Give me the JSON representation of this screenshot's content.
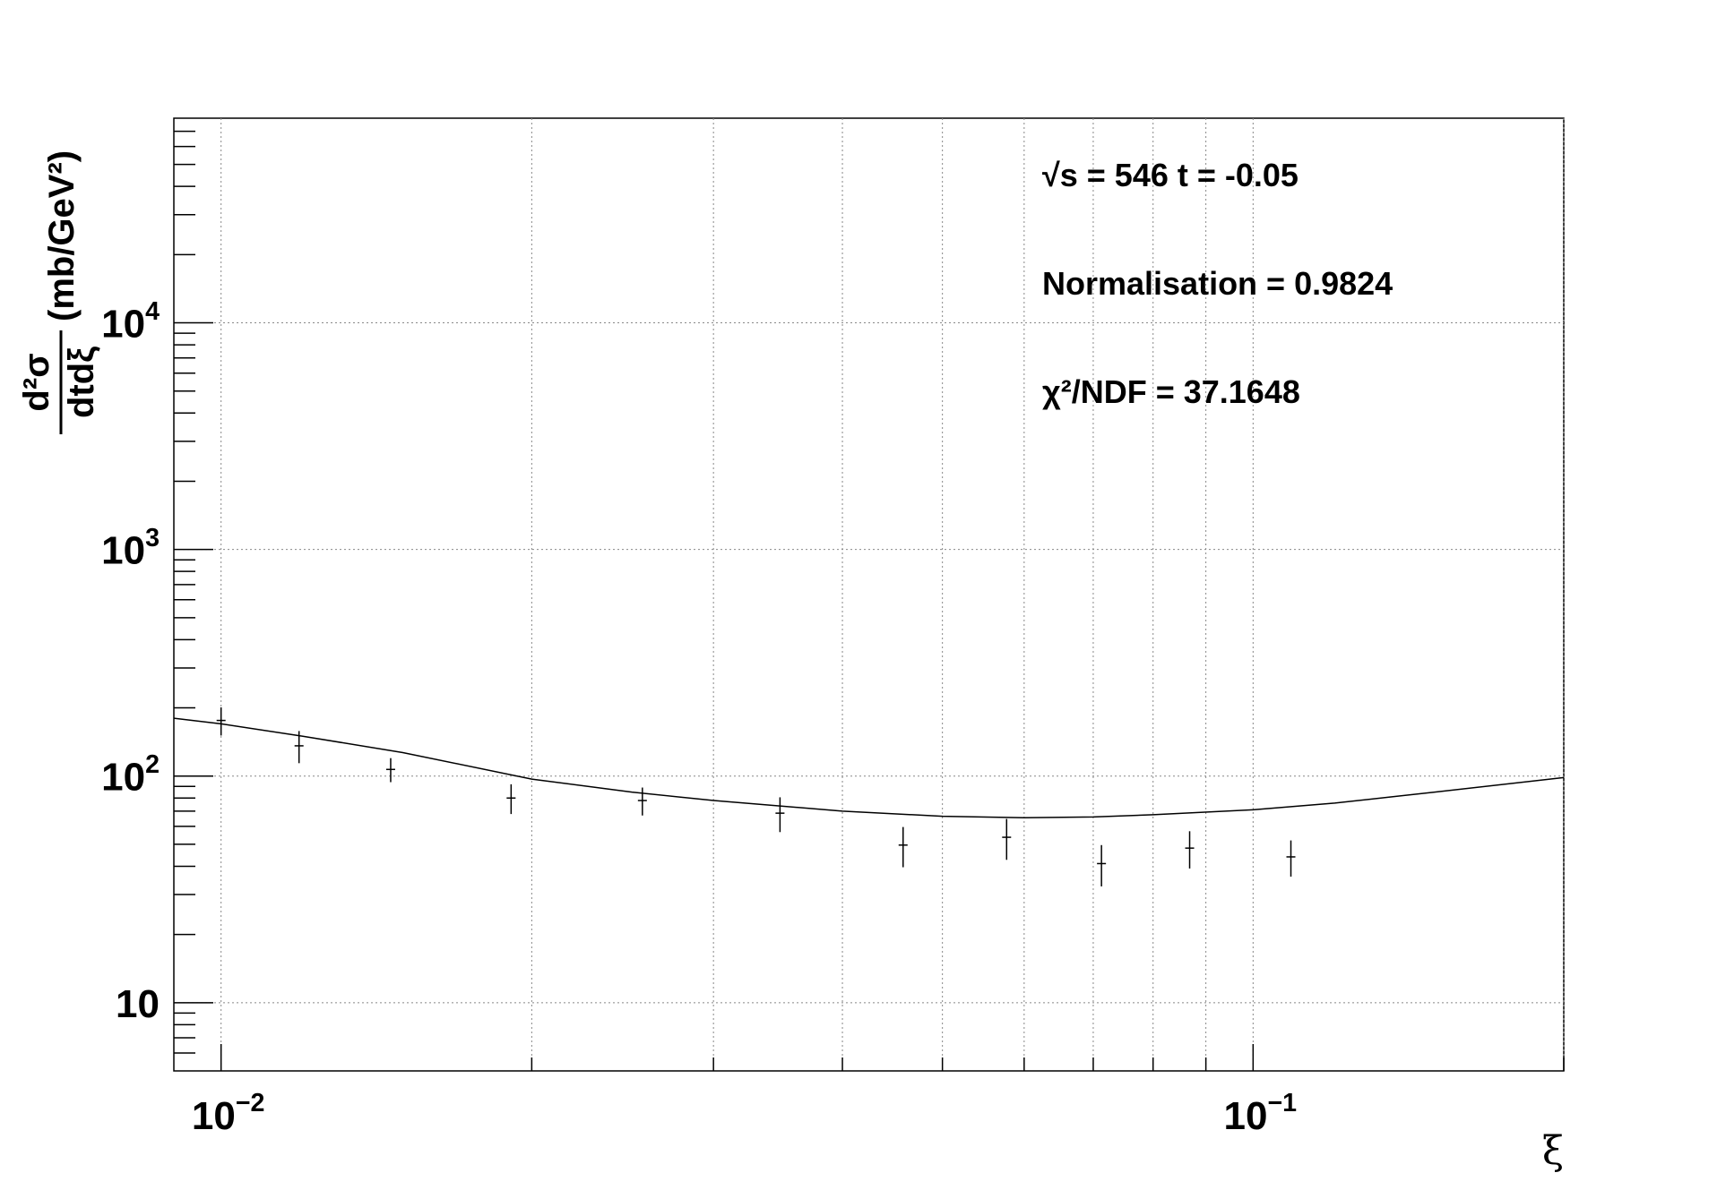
{
  "chart_data": {
    "type": "scatter",
    "annotations": [
      "√s = 546 t = -0.05",
      "Normalisation = 0.9824",
      "χ²/NDF = 37.1648"
    ],
    "xlabel": "ξ",
    "ylabel": {
      "numerator": "d²σ",
      "denominator": "dtdξ",
      "unit": "(mb/GeV²)"
    },
    "xscale": "log",
    "yscale": "log",
    "grid": true,
    "xlim": [
      0.009,
      0.2
    ],
    "ylim": [
      5,
      80000
    ],
    "xticks": [
      {
        "value": 0.01,
        "label": "10",
        "exponent": "−2"
      },
      {
        "value": 0.1,
        "label": "10",
        "exponent": "−1"
      }
    ],
    "yticks": [
      10,
      {
        "value": 100,
        "label": "10",
        "exponent": "2"
      },
      {
        "value": 1000,
        "label": "10",
        "exponent": "3"
      },
      {
        "value": 10000,
        "label": "10",
        "exponent": "4"
      }
    ],
    "xminor": [
      0.02,
      0.03,
      0.04,
      0.05,
      0.06,
      0.07,
      0.08,
      0.09,
      0.2
    ],
    "yminor": [
      6,
      7,
      8,
      9,
      20,
      30,
      40,
      50,
      60,
      70,
      80,
      90,
      200,
      300,
      400,
      500,
      600,
      700,
      800,
      900,
      2000,
      3000,
      4000,
      5000,
      6000,
      7000,
      8000,
      9000,
      20000,
      30000,
      40000,
      50000,
      60000,
      70000
    ],
    "points": {
      "color": "#000000",
      "x": [
        0.01,
        0.0119,
        0.0146,
        0.0191,
        0.0256,
        0.0348,
        0.0458,
        0.0577,
        0.0713,
        0.0868,
        0.1088
      ],
      "values": [
        176,
        136,
        107,
        80,
        78,
        68.6,
        49.6,
        53.7,
        41.1,
        48.1,
        44
      ],
      "errors": [
        25,
        22,
        13,
        12,
        11,
        12,
        10,
        11,
        8.5,
        9,
        8
      ]
    },
    "fit": {
      "color": "#000000",
      "x": [
        0.009,
        0.01,
        0.012,
        0.015,
        0.02,
        0.025,
        0.03,
        0.04,
        0.05,
        0.06,
        0.07,
        0.08,
        0.1,
        0.12,
        0.15,
        0.2
      ],
      "values": [
        180,
        170,
        150,
        127,
        97,
        85,
        78,
        70,
        66.5,
        65.5,
        66,
        67.5,
        71,
        76,
        85,
        98.5
      ]
    }
  }
}
